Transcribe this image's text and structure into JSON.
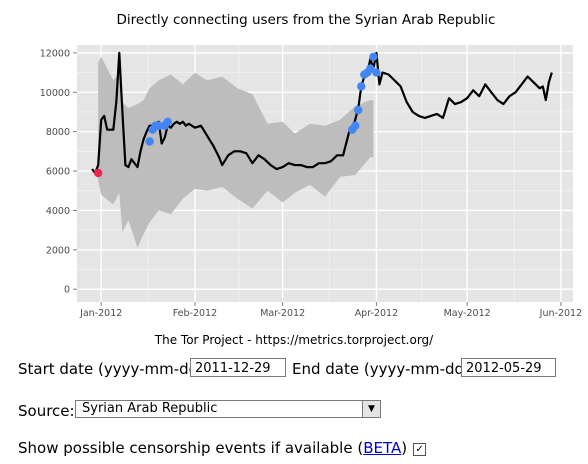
{
  "chart_data": {
    "type": "line",
    "title": "Directly connecting users from the Syrian Arab Republic",
    "caption": "The Tor Project - https://metrics.torproject.org/",
    "xlabel": "",
    "ylabel": "",
    "x_ticks": [
      "Jan-2012",
      "Feb-2012",
      "Mar-2012",
      "Apr-2012",
      "May-2012",
      "Jun-2012"
    ],
    "y_ticks": [
      "0",
      "2000",
      "4000",
      "6000",
      "8000",
      "10000",
      "12000"
    ],
    "xlim": [
      "2011-12-24",
      "2012-06-05"
    ],
    "ylim": [
      -650,
      12400
    ],
    "grid": true,
    "colors": {
      "panel_bg": "#e5e5e5",
      "grid": "#ffffff",
      "range_band": "#bdbdbd",
      "users_line": "#000000",
      "upturn_events": "#4285f4",
      "downturn_events": "#e8284d"
    },
    "series": [
      {
        "x": [
          "2011-12-29",
          "2011-12-30",
          "2011-12-31",
          "2012-01-01",
          "2012-01-02",
          "2012-01-03",
          "2012-01-04",
          "2012-01-05",
          "2012-01-06",
          "2012-01-07",
          "2012-01-08",
          "2012-01-09",
          "2012-01-10",
          "2012-01-11",
          "2012-01-12",
          "2012-01-13",
          "2012-01-14",
          "2012-01-15",
          "2012-01-16",
          "2012-01-17",
          "2012-01-18",
          "2012-01-19",
          "2012-01-20",
          "2012-01-21",
          "2012-01-22",
          "2012-01-23",
          "2012-01-24",
          "2012-01-25",
          "2012-01-26",
          "2012-01-27",
          "2012-01-28",
          "2012-01-29",
          "2012-01-30",
          "2012-02-01",
          "2012-02-03",
          "2012-02-05",
          "2012-02-07",
          "2012-02-09",
          "2012-02-10",
          "2012-02-12",
          "2012-02-14",
          "2012-02-16",
          "2012-02-18",
          "2012-02-20",
          "2012-02-22",
          "2012-02-24",
          "2012-02-26",
          "2012-02-28",
          "2012-03-01",
          "2012-03-03",
          "2012-03-05",
          "2012-03-07",
          "2012-03-09",
          "2012-03-11",
          "2012-03-13",
          "2012-03-15",
          "2012-03-17",
          "2012-03-19",
          "2012-03-21",
          "2012-03-23",
          "2012-03-24",
          "2012-03-25",
          "2012-03-26",
          "2012-03-27",
          "2012-03-28",
          "2012-03-29",
          "2012-03-30",
          "2012-03-31",
          "2012-04-01",
          "2012-04-02",
          "2012-04-03",
          "2012-04-05",
          "2012-04-07",
          "2012-04-09",
          "2012-04-11",
          "2012-04-13",
          "2012-04-15",
          "2012-04-17",
          "2012-04-19",
          "2012-04-21",
          "2012-04-23",
          "2012-04-25",
          "2012-04-27",
          "2012-04-29",
          "2012-05-01",
          "2012-05-03",
          "2012-05-05",
          "2012-05-07",
          "2012-05-09",
          "2012-05-11",
          "2012-05-13",
          "2012-05-15",
          "2012-05-17",
          "2012-05-19",
          "2012-05-21",
          "2012-05-23",
          "2012-05-25",
          "2012-05-26",
          "2012-05-27",
          "2012-05-28",
          "2012-05-29"
        ],
        "y": [
          6100,
          5900,
          6300,
          8600,
          8800,
          8100,
          8100,
          8100,
          9500,
          12000,
          9000,
          6300,
          6200,
          6600,
          6400,
          6200,
          7000,
          7600,
          8000,
          8300,
          8300,
          8400,
          8500,
          7400,
          7700,
          8300,
          8200,
          8400,
          8500,
          8400,
          8500,
          8300,
          8400,
          8200,
          8300,
          7800,
          7300,
          6700,
          6300,
          6800,
          7000,
          7000,
          6900,
          6400,
          6800,
          6600,
          6300,
          6100,
          6200,
          6400,
          6300,
          6300,
          6200,
          6200,
          6400,
          6400,
          6500,
          6800,
          6800,
          8000,
          8100,
          8600,
          9200,
          10300,
          10800,
          11000,
          11700,
          11200,
          12000,
          10400,
          11000,
          10900,
          10600,
          10300,
          9500,
          9000,
          8800,
          8700,
          8800,
          8900,
          8700,
          9700,
          9400,
          9500,
          9700,
          10100,
          9800,
          10400,
          10000,
          9600,
          9400,
          9800,
          10000,
          10400,
          10800,
          10500,
          10200,
          10300,
          9600,
          10500,
          11000
        ]
      }
    ],
    "range_band": {
      "note": "shaded expected-range band (lower/upper bounds)",
      "x": [
        "2011-12-31",
        "2012-01-01",
        "2012-01-05",
        "2012-01-07",
        "2012-01-08",
        "2012-01-10",
        "2012-01-13",
        "2012-01-15",
        "2012-01-17",
        "2012-01-20",
        "2012-01-24",
        "2012-01-28",
        "2012-02-01",
        "2012-02-05",
        "2012-02-10",
        "2012-02-15",
        "2012-02-20",
        "2012-02-25",
        "2012-03-01",
        "2012-03-05",
        "2012-03-10",
        "2012-03-15",
        "2012-03-20",
        "2012-03-25",
        "2012-03-30",
        "2012-03-31"
      ],
      "upper": [
        11500,
        11800,
        10600,
        11000,
        9500,
        9200,
        9400,
        9600,
        10200,
        10600,
        10900,
        10400,
        11000,
        10600,
        10800,
        10200,
        9900,
        8400,
        8500,
        7900,
        8400,
        8300,
        8600,
        9300,
        9600,
        9600
      ],
      "lower": [
        5500,
        4800,
        4300,
        4900,
        2900,
        3500,
        2100,
        2800,
        3400,
        4000,
        3800,
        4600,
        5100,
        5000,
        5200,
        4600,
        4100,
        5000,
        4400,
        4900,
        5300,
        4700,
        5700,
        5800,
        6700,
        6700
      ]
    },
    "event_markers": {
      "upturns": {
        "x": [
          "2012-01-17",
          "2012-01-18",
          "2012-01-19",
          "2012-01-20",
          "2012-01-22",
          "2012-01-23",
          "2012-03-24",
          "2012-03-25",
          "2012-03-26",
          "2012-03-27",
          "2012-03-28",
          "2012-03-29",
          "2012-03-30",
          "2012-03-31",
          "2012-04-01"
        ],
        "y": [
          7500,
          8100,
          8300,
          8300,
          8300,
          8500,
          8100,
          8300,
          9100,
          10300,
          10900,
          11000,
          11200,
          11800,
          11000
        ]
      },
      "downturns": {
        "x": [
          "2011-12-31"
        ],
        "y": [
          5900
        ]
      }
    }
  },
  "form": {
    "start_label": "Start date (yyyy-mm-dd):",
    "start_value": "2011-12-29",
    "end_label": "End date (yyyy-mm-dd):",
    "end_value": "2012-05-29",
    "source_label": "Source:",
    "source_value": "Syrian Arab Republic",
    "source_arrow": "▼",
    "censor_text_before": "Show possible censorship events if available (",
    "censor_link": "BETA",
    "censor_text_after": ")",
    "censor_checked": "✓"
  }
}
